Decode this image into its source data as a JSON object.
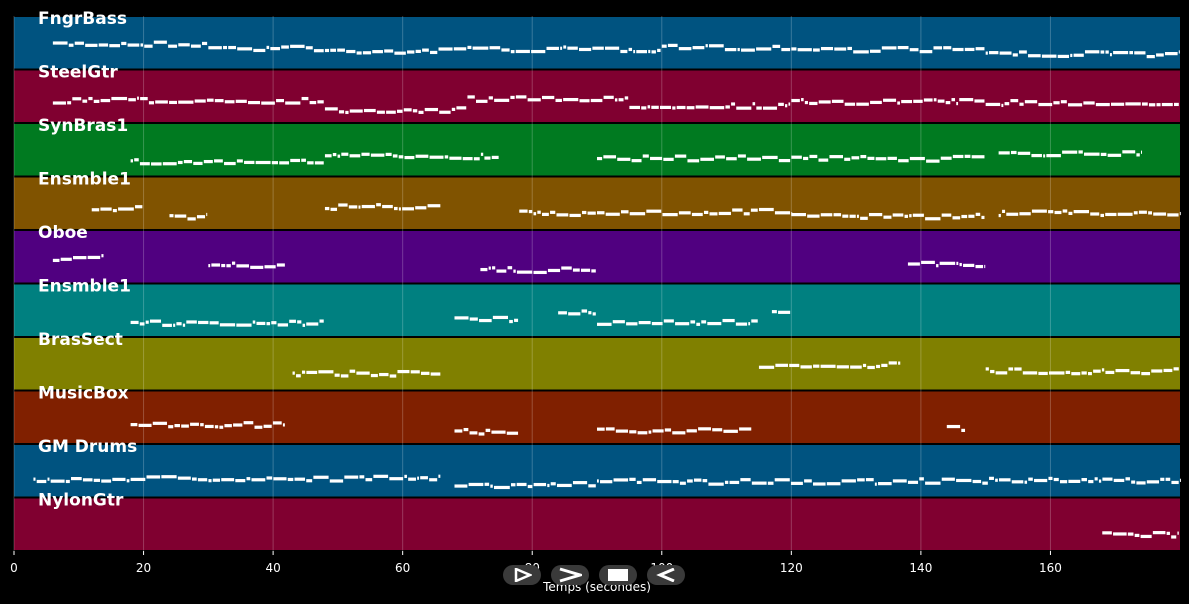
{
  "chart_data": {
    "type": "piano-roll",
    "xlabel": "Temps (secondes)",
    "xlim": [
      0,
      180
    ],
    "xticks": [
      0,
      20,
      40,
      60,
      80,
      100,
      120,
      140,
      160
    ],
    "grid": true,
    "tracks": [
      {
        "name": "FngrBass",
        "color": "#005380",
        "segments": [
          [
            6,
            30
          ],
          [
            30,
            48
          ],
          [
            48,
            70
          ],
          [
            70,
            100
          ],
          [
            100,
            120
          ],
          [
            120,
            150
          ],
          [
            150,
            180
          ]
        ]
      },
      {
        "name": "SteelGtr",
        "color": "#800030",
        "segments": [
          [
            6,
            48
          ],
          [
            48,
            70
          ],
          [
            70,
            95
          ],
          [
            95,
            120
          ],
          [
            120,
            150
          ],
          [
            150,
            180
          ]
        ]
      },
      {
        "name": "SynBras1",
        "color": "#007A20",
        "segments": [
          [
            18,
            48
          ],
          [
            48,
            75
          ],
          [
            90,
            120
          ],
          [
            120,
            150
          ],
          [
            152,
            174
          ]
        ]
      },
      {
        "name": "Ensmble1",
        "color": "#805300",
        "segments": [
          [
            12,
            20
          ],
          [
            24,
            30
          ],
          [
            48,
            66
          ],
          [
            78,
            90
          ],
          [
            90,
            115
          ],
          [
            115,
            120
          ],
          [
            120,
            150
          ],
          [
            152,
            180
          ]
        ]
      },
      {
        "name": "Oboe",
        "color": "#500080",
        "segments": [
          [
            6,
            14
          ],
          [
            30,
            42
          ],
          [
            72,
            90
          ],
          [
            138,
            150
          ]
        ]
      },
      {
        "name": "Ensmble1",
        "color": "#008080",
        "segments": [
          [
            18,
            48
          ],
          [
            68,
            78
          ],
          [
            84,
            90
          ],
          [
            90,
            115
          ],
          [
            117,
            120
          ]
        ]
      },
      {
        "name": "BrasSect",
        "color": "#808000",
        "segments": [
          [
            43,
            58
          ],
          [
            58,
            66
          ],
          [
            115,
            137
          ],
          [
            150,
            180
          ]
        ]
      },
      {
        "name": "MusicBox",
        "color": "#802000",
        "segments": [
          [
            18,
            42
          ],
          [
            68,
            78
          ],
          [
            90,
            114
          ],
          [
            144,
            147
          ]
        ]
      },
      {
        "name": "GM Drums",
        "color": "#005380",
        "segments": [
          [
            3,
            18
          ],
          [
            18,
            66
          ],
          [
            68,
            90
          ],
          [
            90,
            138
          ],
          [
            138,
            180
          ]
        ]
      },
      {
        "name": "NylonGtr",
        "color": "#800030",
        "segments": [
          [
            168,
            180
          ]
        ]
      }
    ]
  },
  "controls": [
    {
      "name": "play-button",
      "icon": "play-icon"
    },
    {
      "name": "forward-button",
      "icon": "fast-forward-icon"
    },
    {
      "name": "stop-button",
      "icon": "stop-icon"
    },
    {
      "name": "rewind-button",
      "icon": "rewind-icon"
    }
  ]
}
